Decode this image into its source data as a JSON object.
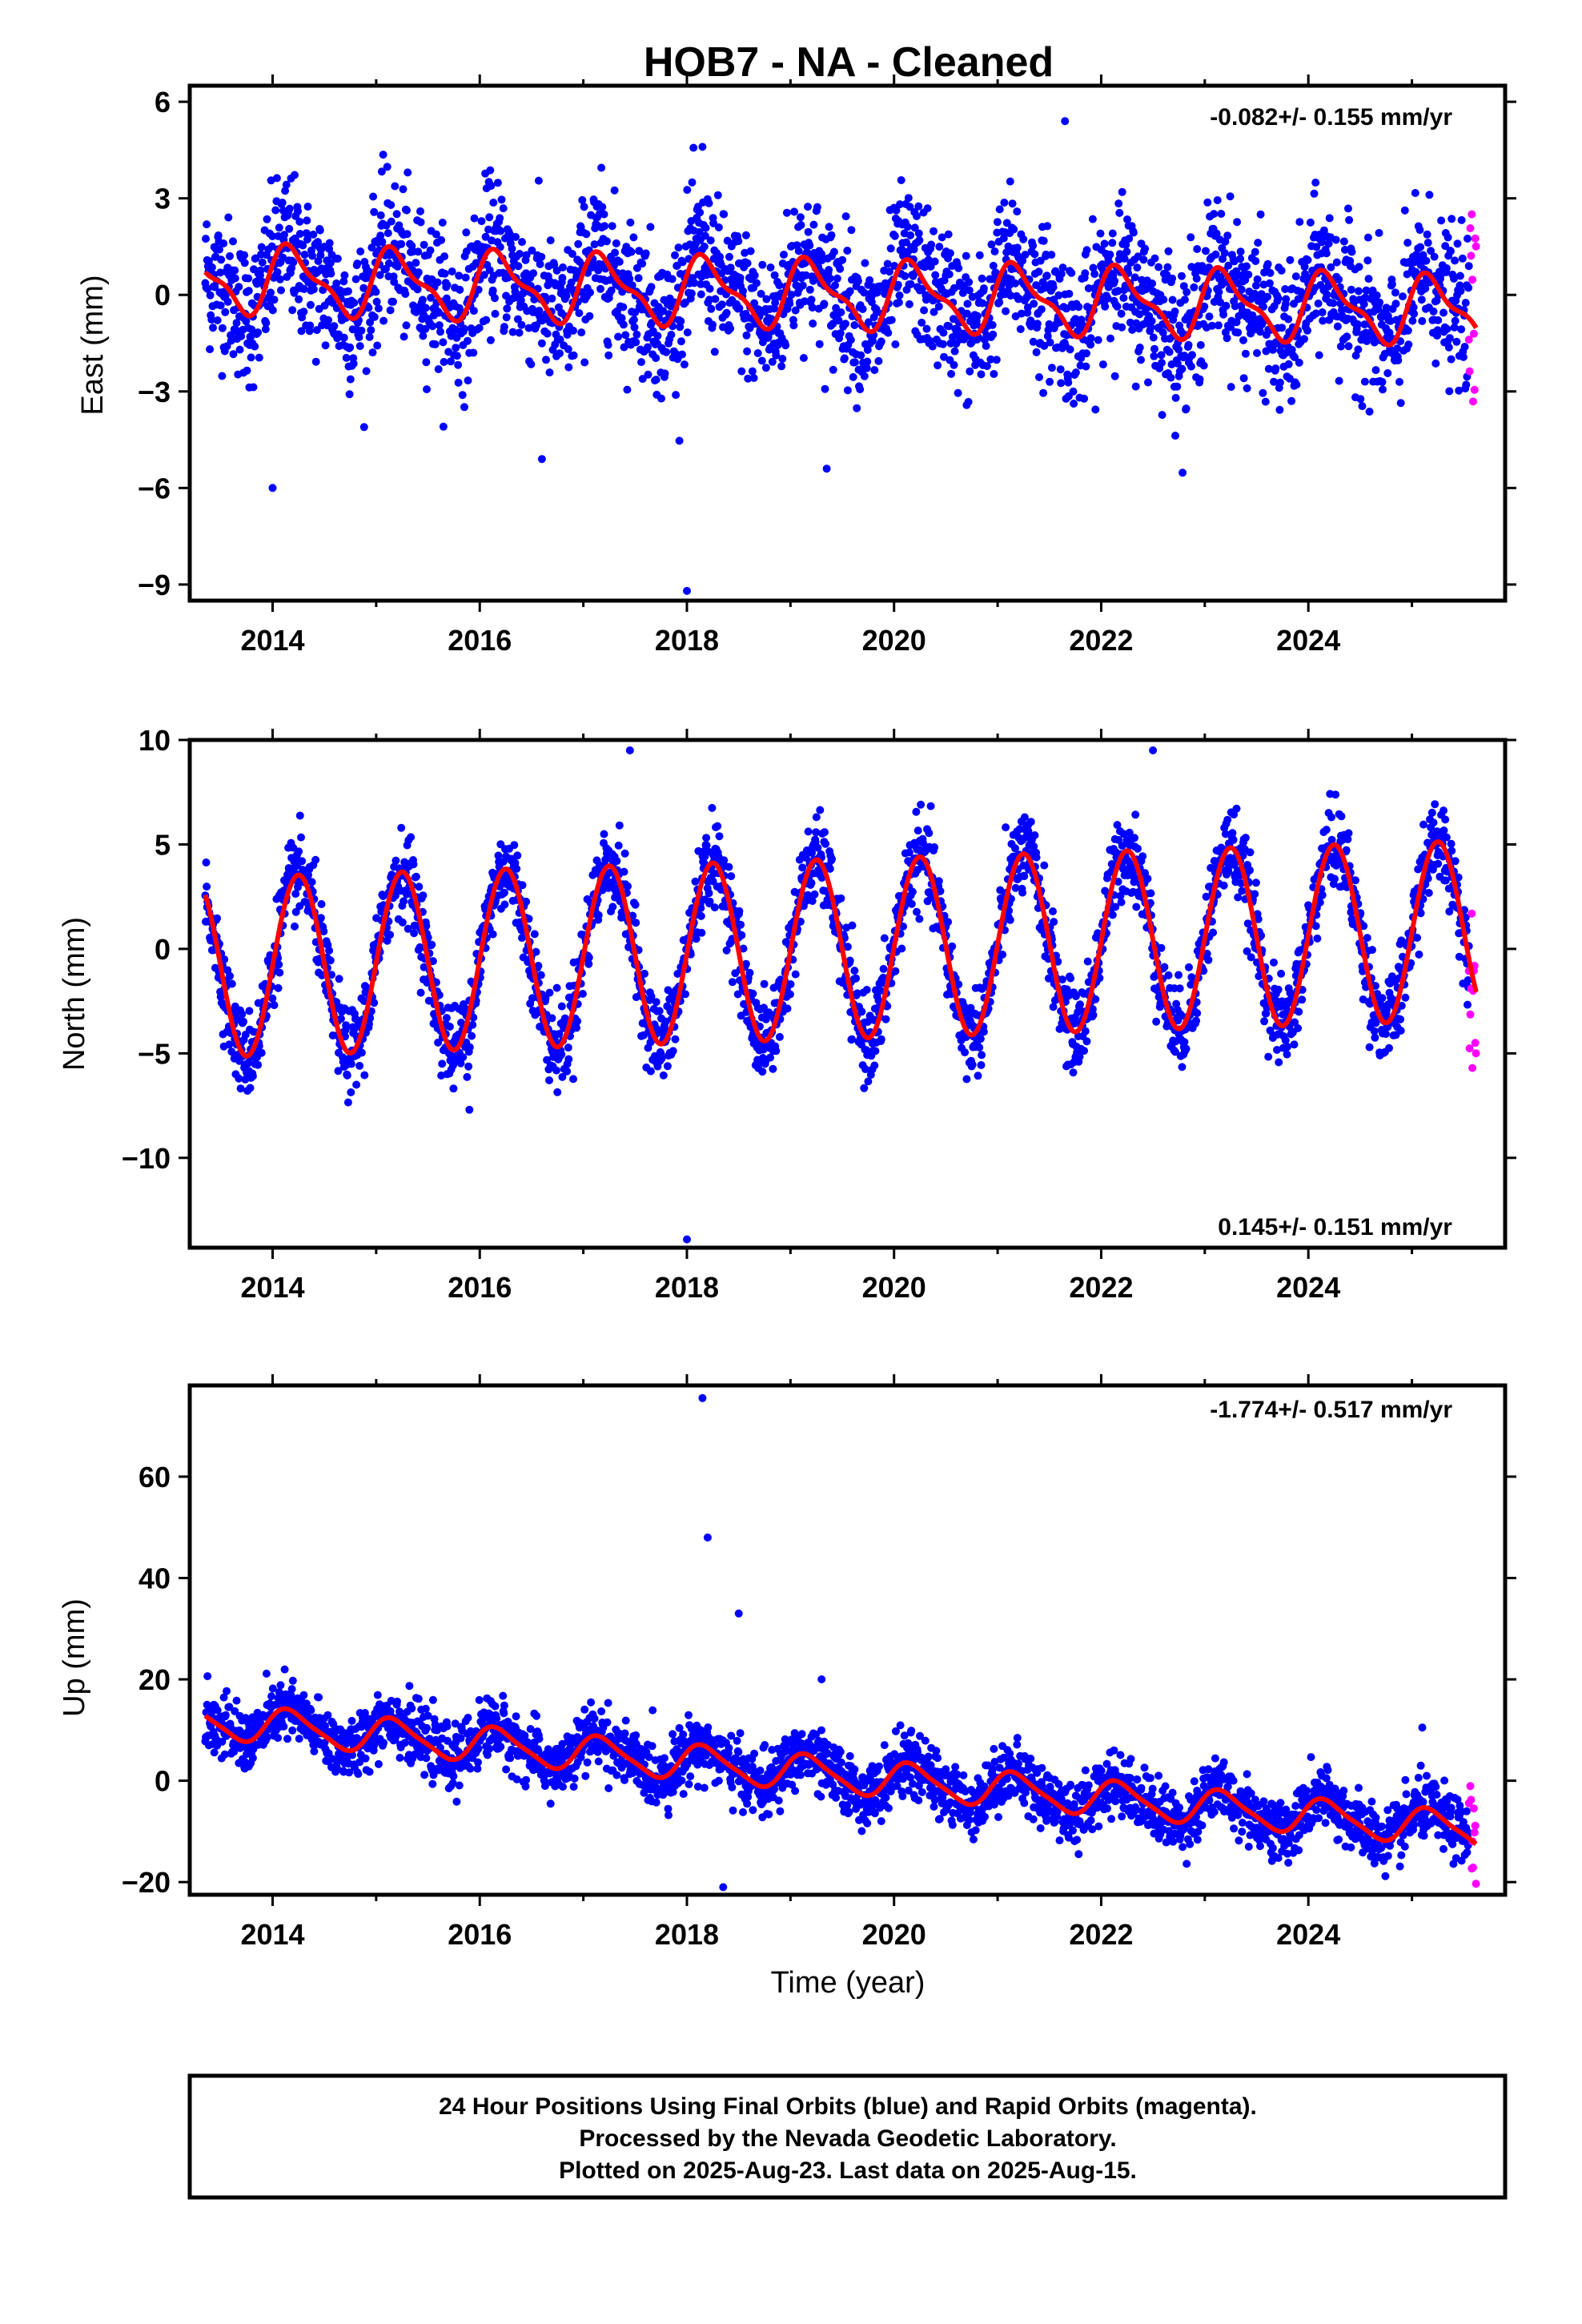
{
  "title": "HOB7  - NA - Cleaned",
  "xlabel": "Time (year)",
  "footer": [
    "24 Hour Positions Using Final Orbits (blue) and Rapid Orbits (magenta).",
    "Processed by the Nevada Geodetic Laboratory.",
    "Plotted on 2025-Aug-23. Last data on 2025-Aug-15."
  ],
  "colors": {
    "final": "#0000ff",
    "rapid": "#ff00ff",
    "model": "#ff0000",
    "frame": "#000000"
  },
  "chart_data": [
    {
      "type": "scatter",
      "component": "east",
      "ylabel": "East (mm)",
      "rate_label": "-0.082+/- 0.155 mm/yr",
      "rate_position": "top-right",
      "xlim": [
        2013.2,
        2025.9
      ],
      "ylim": [
        -9.5,
        6.5
      ],
      "xticks": [
        2014,
        2016,
        2018,
        2020,
        2022,
        2024
      ],
      "xtick_labels": [
        "2014",
        "2016",
        "2018",
        "2020",
        "2022",
        "2024"
      ],
      "yticks": [
        6,
        3,
        0,
        -3,
        -6,
        -9
      ],
      "ytick_labels": [
        "6",
        "3",
        "0",
        "−3",
        "−6",
        "−9"
      ],
      "data_start": 2013.35,
      "data_end": 2025.62,
      "rapid_start": 2025.55,
      "model": {
        "rate": -0.082,
        "offset": 0.0,
        "annual": [
          0.9,
          0.3
        ],
        "semiannual": [
          0.3,
          0.2
        ]
      },
      "noise_sigma": 1.1,
      "outliers": [
        [
          2014.0,
          -6.0
        ],
        [
          2016.6,
          -5.1
        ],
        [
          2018.0,
          -9.2
        ],
        [
          2019.35,
          -5.4
        ],
        [
          2018.15,
          4.6
        ],
        [
          2021.65,
          5.4
        ]
      ]
    },
    {
      "type": "scatter",
      "component": "north",
      "ylabel": "North (mm)",
      "rate_label": "0.145+/- 0.151 mm/yr",
      "rate_position": "bottom-right",
      "xlim": [
        2013.2,
        2025.9
      ],
      "ylim": [
        -14.3,
        10.0
      ],
      "xticks": [
        2014,
        2016,
        2018,
        2020,
        2022,
        2024
      ],
      "xtick_labels": [
        "2014",
        "2016",
        "2018",
        "2020",
        "2022",
        "2024"
      ],
      "yticks": [
        10,
        5,
        0,
        -5,
        -10
      ],
      "ytick_labels": [
        "10",
        "5",
        "0",
        "−5",
        "−10"
      ],
      "data_start": 2013.35,
      "data_end": 2025.62,
      "rapid_start": 2025.55,
      "model": {
        "rate": 0.145,
        "offset": 0.0,
        "annual": [
          4.3,
          0.0
        ],
        "semiannual": [
          0.0,
          0.0
        ]
      },
      "noise_sigma": 1.0,
      "outliers": [
        [
          2018.0,
          -13.9
        ],
        [
          2015.9,
          -7.7
        ],
        [
          2017.45,
          9.5
        ],
        [
          2022.5,
          9.5
        ]
      ]
    },
    {
      "type": "scatter",
      "component": "up",
      "ylabel": "Up (mm)",
      "rate_label": "-1.774+/- 0.517 mm/yr",
      "rate_position": "top-right",
      "xlim": [
        2013.2,
        2025.9
      ],
      "ylim": [
        -22.5,
        78
      ],
      "xticks": [
        2014,
        2016,
        2018,
        2020,
        2022,
        2024
      ],
      "xtick_labels": [
        "2014",
        "2016",
        "2018",
        "2020",
        "2022",
        "2024"
      ],
      "yticks": [
        60,
        40,
        20,
        0,
        -20
      ],
      "ytick_labels": [
        "60",
        "40",
        "20",
        "0",
        "−20"
      ],
      "data_start": 2013.35,
      "data_end": 2025.62,
      "rapid_start": 2025.55,
      "model": {
        "rate": -1.774,
        "offset": 1.0,
        "annual": [
          3.0,
          1.5
        ],
        "semiannual": [
          0.5,
          0.5
        ]
      },
      "noise_sigma": 3.0,
      "outliers": [
        [
          2018.15,
          75.5
        ],
        [
          2018.2,
          48.0
        ],
        [
          2018.5,
          33.0
        ],
        [
          2018.35,
          -21.0
        ],
        [
          2019.3,
          20.0
        ],
        [
          2025.1,
          10.5
        ]
      ]
    }
  ]
}
